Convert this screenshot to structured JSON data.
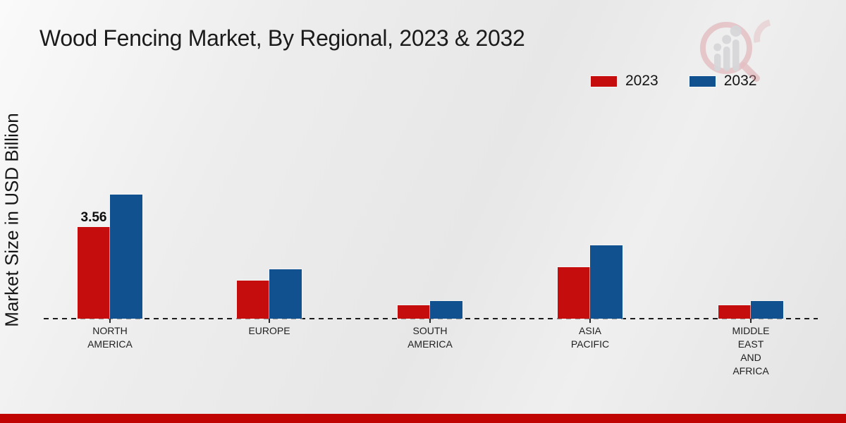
{
  "page": {
    "title": "Wood Fencing Market, By Regional, 2023 & 2032",
    "y_axis_label": "Market Size in USD Billion",
    "footer_color": "#c00404",
    "background_color": "#e9e9e9",
    "logo_name": "magnifier-growth-chart-logo"
  },
  "legend": {
    "items": [
      {
        "label": "2023",
        "color": "#c60d0d"
      },
      {
        "label": "2032",
        "color": "#11518f"
      }
    ]
  },
  "chart_data": {
    "type": "bar",
    "title": "Wood Fencing Market, By Regional, 2023 & 2032",
    "xlabel": "",
    "ylabel": "Market Size in USD Billion",
    "categories": [
      "NORTH\nAMERICA",
      "EUROPE",
      "SOUTH\nAMERICA",
      "ASIA\nPACIFIC",
      "MIDDLE\nEAST\nAND\nAFRICA"
    ],
    "series": [
      {
        "name": "2023",
        "color": "#c60d0d",
        "values": [
          3.56,
          1.48,
          0.52,
          2.0,
          0.52
        ]
      },
      {
        "name": "2032",
        "color": "#11518f",
        "values": [
          4.82,
          1.92,
          0.68,
          2.85,
          0.68
        ]
      }
    ],
    "data_labels": [
      {
        "series_index": 0,
        "category_index": 0,
        "text": "3.56"
      }
    ],
    "ylim": [
      0,
      5
    ],
    "y_axis_ticks_visible": false,
    "baseline_style": "dashed",
    "grid": false,
    "legend_position": "top-right"
  }
}
